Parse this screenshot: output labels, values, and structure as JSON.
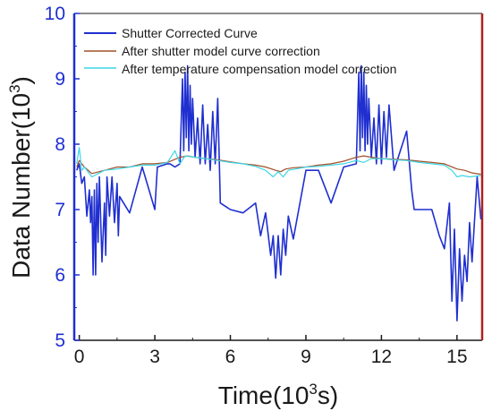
{
  "chart_data": {
    "type": "line",
    "title": "",
    "xlabel": "Time(10",
    "xlabel_sup": "3",
    "xlabel_tail": "s)",
    "ylabel": "Data Number(10",
    "ylabel_sup": "3",
    "ylabel_tail": ")",
    "xlim": [
      -0.2,
      16.0
    ],
    "ylim": [
      5,
      10
    ],
    "x_ticks": [
      "0",
      "3",
      "6",
      "9",
      "12",
      "15"
    ],
    "x_tick_values": [
      0,
      3,
      6,
      9,
      12,
      15
    ],
    "y_ticks": [
      "5",
      "6",
      "7",
      "8",
      "9",
      "10"
    ],
    "y_tick_values": [
      5,
      6,
      7,
      8,
      9,
      10
    ],
    "grid": false,
    "legend_position": "top-left",
    "colors": {
      "axis_left": "#1f2fd0",
      "axis_right": "#b02020",
      "tick_text_left": "#1f2fd0"
    },
    "series": [
      {
        "name": "Shutter Corrected Curve",
        "color": "#1f2fd0",
        "x": [
          -0.1,
          0.0,
          0.1,
          0.2,
          0.3,
          0.4,
          0.45,
          0.5,
          0.55,
          0.6,
          0.65,
          0.7,
          0.75,
          0.8,
          0.9,
          1.0,
          1.05,
          1.1,
          1.2,
          1.3,
          1.4,
          1.5,
          1.55,
          1.6,
          2.0,
          2.5,
          3.0,
          3.1,
          3.5,
          3.6,
          3.8,
          4.0,
          4.1,
          4.15,
          4.2,
          4.25,
          4.3,
          4.35,
          4.4,
          4.45,
          4.5,
          4.6,
          4.7,
          4.8,
          4.9,
          5.0,
          5.1,
          5.2,
          5.3,
          5.4,
          5.5,
          5.6,
          6.0,
          6.5,
          7.0,
          7.2,
          7.4,
          7.6,
          7.7,
          7.8,
          7.9,
          8.0,
          8.1,
          8.2,
          8.3,
          8.5,
          9.0,
          9.5,
          10.0,
          10.5,
          11.0,
          11.1,
          11.15,
          11.2,
          11.25,
          11.3,
          11.35,
          11.4,
          11.45,
          11.5,
          11.6,
          11.7,
          11.8,
          11.9,
          12.0,
          12.1,
          12.2,
          12.3,
          12.5,
          13.0,
          13.2,
          13.3,
          13.5,
          14.0,
          14.3,
          14.5,
          14.7,
          14.8,
          14.9,
          15.0,
          15.1,
          15.2,
          15.3,
          15.4,
          15.5,
          15.6,
          15.8,
          15.95
        ],
        "values": [
          7.6,
          7.7,
          7.4,
          7.5,
          6.9,
          7.3,
          6.8,
          7.2,
          6.0,
          7.3,
          6.0,
          7.4,
          6.5,
          7.5,
          6.2,
          7.1,
          6.3,
          7.5,
          6.9,
          7.5,
          6.8,
          7.4,
          6.6,
          7.2,
          6.95,
          7.65,
          7.0,
          7.65,
          7.7,
          7.7,
          7.65,
          7.7,
          9.0,
          7.9,
          9.1,
          8.1,
          9.2,
          7.9,
          8.9,
          8.0,
          8.7,
          7.8,
          8.4,
          7.7,
          8.6,
          7.7,
          8.3,
          7.6,
          8.5,
          7.7,
          8.7,
          7.1,
          7.0,
          6.95,
          7.1,
          6.6,
          6.95,
          6.3,
          6.6,
          5.95,
          6.6,
          6.0,
          6.7,
          6.3,
          6.9,
          6.55,
          7.6,
          7.6,
          7.1,
          7.65,
          7.7,
          9.1,
          7.9,
          9.2,
          8.1,
          9.1,
          7.9,
          8.9,
          8.0,
          8.7,
          7.8,
          8.4,
          7.7,
          8.6,
          7.7,
          8.5,
          7.8,
          8.6,
          7.6,
          8.2,
          7.3,
          7.0,
          7.0,
          7.0,
          6.6,
          6.4,
          7.1,
          5.6,
          6.7,
          5.3,
          6.4,
          5.6,
          6.3,
          5.9,
          6.8,
          6.2,
          7.5,
          6.85
        ]
      },
      {
        "name": "After shutter model curve correction",
        "color": "#a0502a",
        "x": [
          -0.1,
          0.0,
          0.2,
          0.5,
          1.0,
          1.5,
          2.0,
          2.5,
          3.0,
          3.5,
          4.0,
          4.3,
          4.6,
          5.0,
          5.5,
          6.0,
          6.5,
          7.0,
          7.4,
          7.8,
          8.0,
          8.2,
          8.5,
          9.0,
          9.5,
          10.0,
          10.5,
          11.0,
          11.3,
          11.6,
          12.0,
          12.5,
          13.0,
          13.5,
          14.0,
          14.5,
          15.0,
          15.3,
          15.6,
          15.95
        ],
        "values": [
          7.65,
          7.75,
          7.65,
          7.55,
          7.6,
          7.65,
          7.65,
          7.7,
          7.7,
          7.72,
          7.8,
          7.82,
          7.8,
          7.78,
          7.76,
          7.73,
          7.7,
          7.68,
          7.65,
          7.6,
          7.58,
          7.62,
          7.64,
          7.65,
          7.68,
          7.7,
          7.74,
          7.8,
          7.82,
          7.8,
          7.78,
          7.77,
          7.76,
          7.74,
          7.72,
          7.7,
          7.62,
          7.6,
          7.56,
          7.54
        ]
      },
      {
        "name": "After temperature compensation model correction",
        "color": "#3ed6e6",
        "x": [
          -0.1,
          0.0,
          0.1,
          0.2,
          0.5,
          1.0,
          1.5,
          2.0,
          2.5,
          3.0,
          3.5,
          3.8,
          4.0,
          4.2,
          4.6,
          5.0,
          5.5,
          6.0,
          6.5,
          7.0,
          7.4,
          7.7,
          7.9,
          8.1,
          8.3,
          8.6,
          9.0,
          9.5,
          10.0,
          10.5,
          11.0,
          11.3,
          11.6,
          12.0,
          12.5,
          13.0,
          13.5,
          14.0,
          14.5,
          14.8,
          15.0,
          15.2,
          15.5,
          15.95
        ],
        "values": [
          7.7,
          7.95,
          7.6,
          7.65,
          7.5,
          7.6,
          7.62,
          7.65,
          7.68,
          7.68,
          7.72,
          7.9,
          7.7,
          7.82,
          7.8,
          7.78,
          7.75,
          7.72,
          7.7,
          7.66,
          7.6,
          7.5,
          7.58,
          7.5,
          7.6,
          7.62,
          7.65,
          7.66,
          7.68,
          7.7,
          7.75,
          7.72,
          7.78,
          7.78,
          7.76,
          7.75,
          7.72,
          7.7,
          7.68,
          7.6,
          7.5,
          7.52,
          7.5,
          7.52
        ]
      }
    ]
  }
}
